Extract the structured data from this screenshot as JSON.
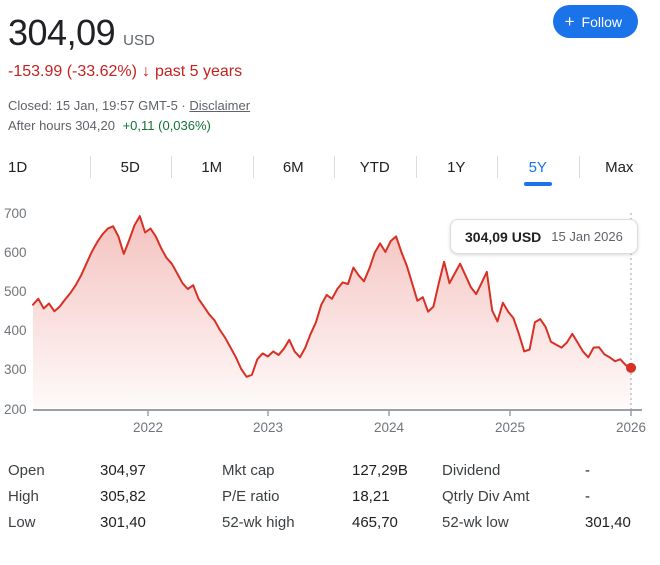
{
  "header": {
    "price": "304,09",
    "currency": "USD",
    "change_value": "-153.99 (-33.62%)",
    "change_arrow": "↓",
    "change_period": "past 5 years",
    "closed_line": "Closed: 15 Jan, 19:57 GMT-5 ·",
    "disclaimer_label": "Disclaimer",
    "after_hours_label": "After hours 304,20",
    "after_hours_change": "+0,11 (0,036%)",
    "follow_button": {
      "icon": "+",
      "label": "Follow"
    }
  },
  "tabs": [
    {
      "label": "1D",
      "active": false
    },
    {
      "label": "5D",
      "active": false
    },
    {
      "label": "1M",
      "active": false
    },
    {
      "label": "6M",
      "active": false
    },
    {
      "label": "YTD",
      "active": false
    },
    {
      "label": "1Y",
      "active": false
    },
    {
      "label": "5Y",
      "active": true
    },
    {
      "label": "Max",
      "active": false
    }
  ],
  "tooltip": {
    "price": "304,09 USD",
    "date": "15 Jan 2026"
  },
  "chart_data": {
    "type": "area",
    "title": "5 year stock price chart",
    "x_tick_labels": [
      "2022",
      "2023",
      "2024",
      "2025",
      "2026"
    ],
    "y_tick_labels": [
      "700",
      "600",
      "500",
      "400",
      "300",
      "200"
    ],
    "ylim": [
      200,
      700
    ],
    "x_range": [
      "Jan 2021",
      "15 Jan 2026"
    ],
    "grid": false,
    "legend": "none",
    "line_color": "#d93025",
    "values": [
      465,
      480,
      455,
      468,
      448,
      460,
      478,
      495,
      515,
      540,
      570,
      600,
      625,
      645,
      660,
      666,
      640,
      595,
      630,
      668,
      692,
      650,
      660,
      640,
      610,
      585,
      570,
      545,
      520,
      505,
      515,
      480,
      460,
      440,
      425,
      400,
      380,
      355,
      330,
      300,
      280,
      285,
      325,
      340,
      332,
      345,
      336,
      352,
      375,
      345,
      330,
      355,
      390,
      420,
      465,
      490,
      480,
      505,
      522,
      518,
      560,
      540,
      525,
      558,
      598,
      622,
      600,
      628,
      640,
      600,
      565,
      520,
      475,
      484,
      447,
      460,
      520,
      575,
      520,
      545,
      570,
      540,
      510,
      492,
      520,
      549,
      450,
      422,
      470,
      447,
      430,
      390,
      345,
      350,
      420,
      428,
      408,
      370,
      362,
      355,
      368,
      390,
      368,
      345,
      330,
      355,
      356,
      338,
      330,
      320,
      325,
      310,
      303
    ],
    "last_point": {
      "value": 304.09,
      "label": "304,09 USD",
      "date": "15 Jan 2026"
    }
  },
  "stats": [
    [
      {
        "label": "Open",
        "value": "304,97"
      },
      {
        "label": "Mkt cap",
        "value": "127,29B"
      },
      {
        "label": "Dividend",
        "value": "-"
      }
    ],
    [
      {
        "label": "High",
        "value": "305,82"
      },
      {
        "label": "P/E ratio",
        "value": "18,21"
      },
      {
        "label": "Qtrly Div Amt",
        "value": "-"
      }
    ],
    [
      {
        "label": "Low",
        "value": "301,40"
      },
      {
        "label": "52-wk high",
        "value": "465,70"
      },
      {
        "label": "52-wk low",
        "value": "301,40"
      }
    ]
  ],
  "colors": {
    "negative_red": "#c5221f",
    "line_red": "#d93025",
    "positive_green": "#137333",
    "accent_blue": "#1a73e8",
    "axis_gray": "#70757a"
  }
}
